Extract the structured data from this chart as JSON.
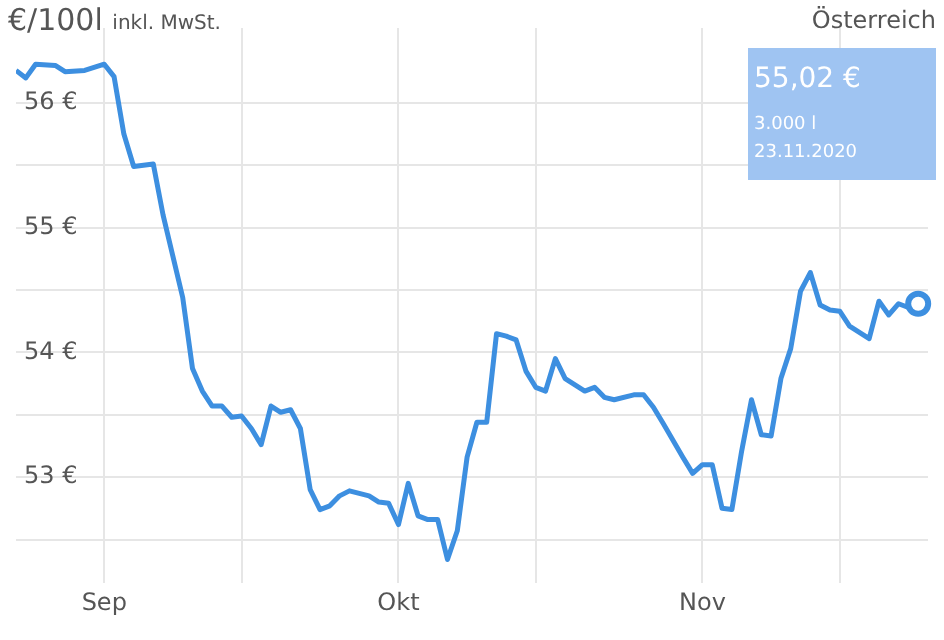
{
  "chart_data": {
    "type": "line",
    "title": "Österreich",
    "ylabel": "€/100l inkl. MwSt.",
    "x": [
      "2020-08-23",
      "2020-08-24",
      "2020-08-25",
      "2020-08-27",
      "2020-08-28",
      "2020-08-30",
      "2020-09-01",
      "2020-09-02",
      "2020-09-03",
      "2020-09-04",
      "2020-09-06",
      "2020-09-07",
      "2020-09-09",
      "2020-09-10",
      "2020-09-11",
      "2020-09-12",
      "2020-09-13",
      "2020-09-14",
      "2020-09-15",
      "2020-09-16",
      "2020-09-17",
      "2020-09-18",
      "2020-09-19",
      "2020-09-20",
      "2020-09-21",
      "2020-09-22",
      "2020-09-23",
      "2020-09-24",
      "2020-09-25",
      "2020-09-26",
      "2020-09-27",
      "2020-09-28",
      "2020-09-29",
      "2020-09-30",
      "2020-10-01",
      "2020-10-02",
      "2020-10-03",
      "2020-10-04",
      "2020-10-05",
      "2020-10-06",
      "2020-10-07",
      "2020-10-08",
      "2020-10-09",
      "2020-10-10",
      "2020-10-11",
      "2020-10-12",
      "2020-10-13",
      "2020-10-14",
      "2020-10-15",
      "2020-10-16",
      "2020-10-17",
      "2020-10-18",
      "2020-10-19",
      "2020-10-20",
      "2020-10-21",
      "2020-10-22",
      "2020-10-23",
      "2020-10-25",
      "2020-10-26",
      "2020-10-27",
      "2020-10-28",
      "2020-10-30",
      "2020-10-31",
      "2020-11-01",
      "2020-11-02",
      "2020-11-03",
      "2020-11-04",
      "2020-11-05",
      "2020-11-06",
      "2020-11-07",
      "2020-11-08",
      "2020-11-09",
      "2020-11-10",
      "2020-11-11",
      "2020-11-12",
      "2020-11-13",
      "2020-11-14",
      "2020-11-15",
      "2020-11-16",
      "2020-11-18",
      "2020-11-19",
      "2020-11-20",
      "2020-11-21",
      "2020-11-22",
      "2020-11-23"
    ],
    "series": [
      {
        "color": "#3d8fe0",
        "values": [
          56.26,
          56.2,
          56.31,
          56.3,
          56.25,
          56.26,
          56.31,
          56.21,
          55.75,
          55.49,
          55.51,
          55.1,
          54.44,
          53.87,
          53.69,
          53.57,
          53.57,
          53.48,
          53.49,
          53.39,
          53.26,
          53.57,
          53.52,
          53.54,
          53.39,
          52.9,
          52.74,
          52.77,
          52.85,
          52.89,
          52.87,
          52.85,
          52.8,
          52.79,
          52.62,
          52.95,
          52.69,
          52.66,
          52.66,
          52.34,
          52.57,
          53.16,
          53.44,
          53.44,
          54.15,
          54.13,
          54.1,
          53.85,
          53.72,
          53.69,
          53.95,
          53.79,
          53.74,
          53.69,
          53.72,
          53.64,
          53.62,
          53.66,
          53.66,
          53.56,
          53.43,
          53.16,
          53.03,
          53.1,
          53.1,
          52.75,
          52.74,
          53.21,
          53.62,
          53.34,
          53.33,
          53.79,
          54.03,
          54.49,
          54.64,
          54.38,
          54.34,
          54.33,
          54.21,
          54.11,
          54.41,
          54.3,
          54.39,
          54.36,
          54.39
        ]
      }
    ],
    "xlim": [
      "2020-08-23",
      "2020-11-24"
    ],
    "xticks": [
      {
        "value": "2020-09-01",
        "label": "Sep"
      },
      {
        "value": "2020-09-15",
        "label": null
      },
      {
        "value": "2020-10-01",
        "label": "Okt"
      },
      {
        "value": "2020-10-15",
        "label": null
      },
      {
        "value": "2020-11-01",
        "label": "Nov"
      },
      {
        "value": "2020-11-15",
        "label": null
      }
    ],
    "ylim": [
      52.15,
      56.6
    ],
    "yticks": [
      {
        "value": 52.5,
        "label": null
      },
      {
        "value": 53,
        "label": "53 €"
      },
      {
        "value": 53.5,
        "label": null
      },
      {
        "value": 54,
        "label": "54 €"
      },
      {
        "value": 54.5,
        "label": null
      },
      {
        "value": 55,
        "label": "55 €"
      },
      {
        "value": 55.5,
        "label": null
      },
      {
        "value": 56,
        "label": "56 €"
      }
    ],
    "grid": true,
    "legend": false,
    "marker": "none",
    "line_style": "solid",
    "annotations": [
      "55,02 €",
      "3.000 l",
      "23.11.2020"
    ]
  }
}
